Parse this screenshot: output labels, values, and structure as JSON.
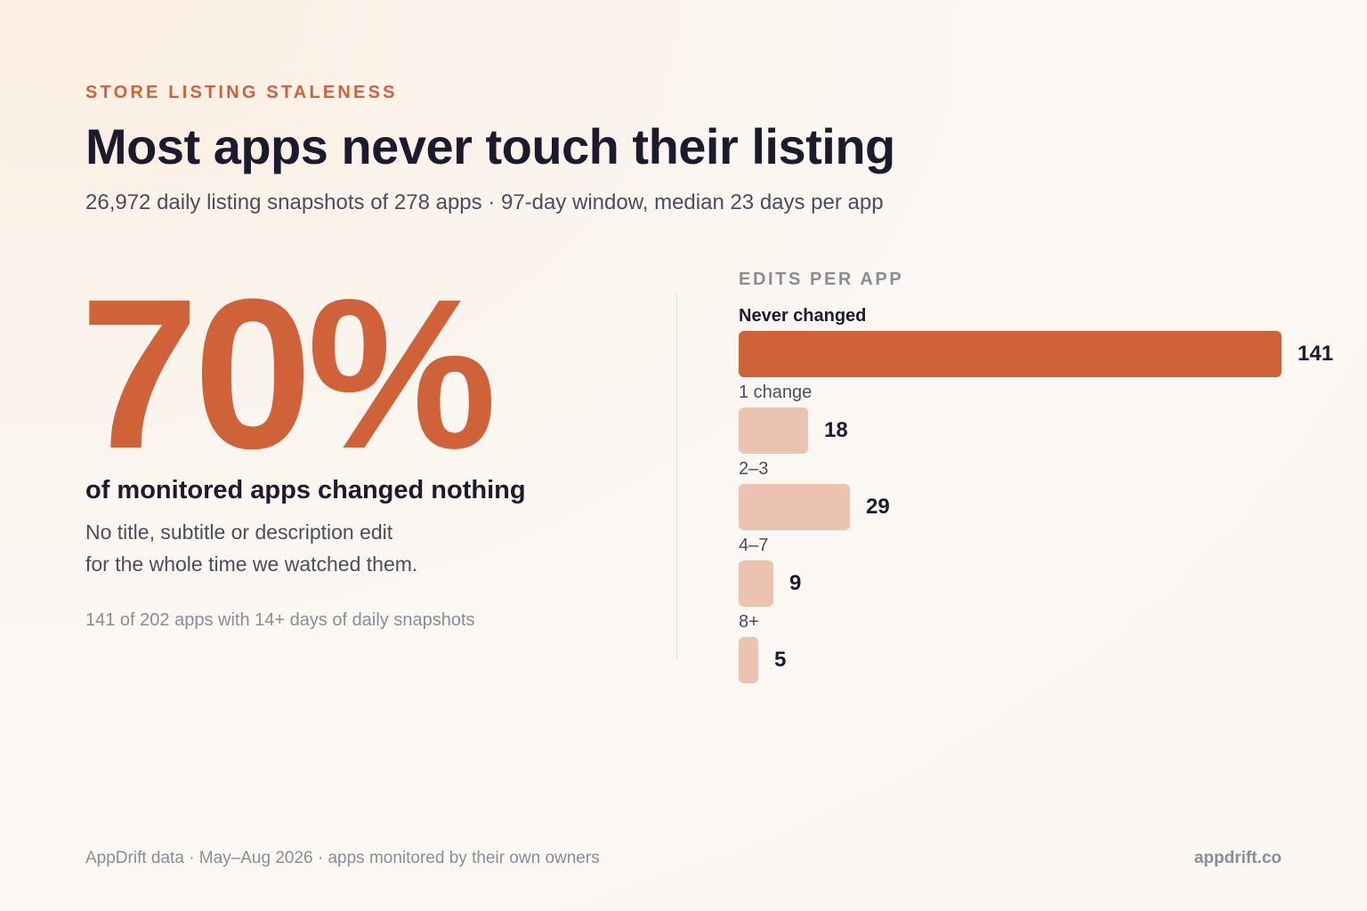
{
  "header": {
    "eyebrow": "STORE LISTING STALENESS",
    "title": "Most apps never touch their listing",
    "subtitle": "26,972 daily listing snapshots of 278 apps · 97-day window, median 23 days per app"
  },
  "stat": {
    "value": "70%",
    "caption": "of monitored apps changed nothing",
    "description_lines": [
      "No title, subtitle or description edit",
      "for the whole time we watched them."
    ],
    "note": "141 of 202 apps with 14+ days of daily snapshots"
  },
  "chart_data": {
    "type": "bar",
    "orientation": "horizontal",
    "title": "EDITS PER APP",
    "categories": [
      "Never changed",
      "1 change",
      "2–3",
      "4–7",
      "8+"
    ],
    "values": [
      141,
      18,
      29,
      9,
      5
    ],
    "highlight_index": 0,
    "xlim": [
      0,
      141
    ],
    "grid": false,
    "colors": {
      "highlight": "#d0623a",
      "default": "#ecc3b1"
    }
  },
  "footer": {
    "source": "AppDrift data · May–Aug 2026 · apps monitored by their own owners",
    "brand": "appdrift.co"
  }
}
